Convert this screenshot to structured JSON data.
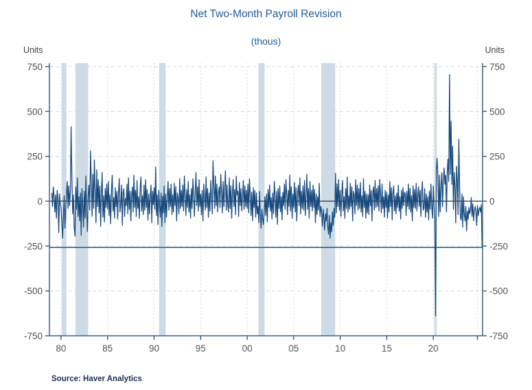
{
  "header": {
    "title": "Net Two-Month Payroll Revision",
    "subtitle": "(thous)"
  },
  "axes": {
    "left_unit_label": "Units",
    "right_unit_label": "Units"
  },
  "source": {
    "text": "Source:  Haver Analytics"
  },
  "colors": {
    "title": "#1e5c97",
    "series": "#184a7e",
    "axis": "#3d6384",
    "tick_label": "#525252",
    "gridline": "#d8d8d8",
    "recession_band": "#ccdbe5",
    "zero_line": "#000000",
    "reference_line": "#1f4e79",
    "source_text": "#1b2f4b"
  },
  "chart_data": {
    "type": "line",
    "title": "Net Two-Month Payroll Revision",
    "subtitle": "(thous)",
    "ylabel": "Units",
    "x_domain": [
      1978.75,
      2025.3
    ],
    "ylim": [
      -750,
      750
    ],
    "y_ticks": [
      750,
      500,
      250,
      0,
      -250,
      -500,
      -750
    ],
    "x_ticks": [
      {
        "year": 1980,
        "label": "80"
      },
      {
        "year": 1985,
        "label": "85"
      },
      {
        "year": 1990,
        "label": "90"
      },
      {
        "year": 1995,
        "label": "95"
      },
      {
        "year": 2000,
        "label": "00"
      },
      {
        "year": 2005,
        "label": "05"
      },
      {
        "year": 2010,
        "label": "10"
      },
      {
        "year": 2015,
        "label": "15"
      },
      {
        "year": 2020,
        "label": "20"
      },
      {
        "year": 2024.75,
        "label": ""
      }
    ],
    "grid": "dashed",
    "zero_line": 0,
    "reference_line": -258,
    "recession_bands": [
      [
        1980.08,
        1980.58
      ],
      [
        1981.54,
        1982.92
      ],
      [
        1990.54,
        1991.25
      ],
      [
        2001.21,
        2001.87
      ],
      [
        2007.96,
        2009.46
      ],
      [
        2020.12,
        2020.37
      ]
    ],
    "series": {
      "name": "Net two-month payroll revision (thous)",
      "start_year": 1979.0,
      "step_years": 0.0833333,
      "values": [
        45,
        -30,
        80,
        25,
        -60,
        35,
        -95,
        60,
        20,
        -175,
        40,
        -15,
        -35,
        -120,
        -205,
        -90,
        30,
        -150,
        -60,
        45,
        110,
        -40,
        85,
        -25,
        60,
        415,
        120,
        -70,
        35,
        -150,
        -195,
        80,
        -45,
        130,
        -85,
        25,
        -110,
        45,
        -190,
        70,
        -30,
        -145,
        55,
        -95,
        140,
        -60,
        -170,
        35,
        90,
        -50,
        280,
        115,
        -85,
        150,
        -40,
        230,
        65,
        -120,
        175,
        -30,
        120,
        -65,
        85,
        -140,
        45,
        160,
        -90,
        30,
        -115,
        70,
        -35,
        95,
        -45,
        110,
        -80,
        35,
        -125,
        60,
        145,
        -55,
        20,
        -95,
        75,
        -30,
        55,
        -100,
        40,
        125,
        -60,
        -20,
        90,
        -135,
        45,
        70,
        -85,
        15,
        -25,
        95,
        -70,
        130,
        -45,
        55,
        -110,
        35,
        80,
        -60,
        145,
        -35,
        60,
        -85,
        115,
        -40,
        25,
        -95,
        70,
        135,
        -55,
        30,
        -75,
        90,
        -50,
        120,
        -35,
        65,
        -105,
        40,
        -70,
        25,
        90,
        -120,
        55,
        -20,
        75,
        -45,
        190,
        -80,
        35,
        -130,
        60,
        -25,
        -90,
        45,
        -140,
        30,
        -65,
        85,
        -120,
        40,
        -90,
        25,
        110,
        -50,
        70,
        -30,
        95,
        -75,
        35,
        -60,
        100,
        -25,
        80,
        -110,
        45,
        15,
        -70,
        125,
        -40,
        60,
        -30,
        90,
        -55,
        140,
        25,
        -80,
        65,
        -35,
        110,
        -60,
        35,
        -95,
        70,
        -40,
        125,
        30,
        -85,
        55,
        160,
        -25,
        80,
        -55,
        120,
        -30,
        40,
        -75,
        60,
        -110,
        95,
        25,
        -50,
        135,
        -35,
        70,
        -90,
        45,
        -55,
        115,
        30,
        -70,
        225,
        85,
        -40,
        140,
        -25,
        95,
        -60,
        50,
        80,
        -35,
        150,
        45,
        -65,
        110,
        -30,
        75,
        170,
        -50,
        90,
        -20,
        -60,
        130,
        -40,
        85,
        -95,
        50,
        120,
        -30,
        65,
        -75,
        140,
        35,
        55,
        -85,
        105,
        -25,
        70,
        -55,
        30,
        115,
        -45,
        85,
        -30,
        60,
        -40,
        95,
        -65,
        125,
        35,
        -80,
        50,
        -110,
        75,
        -35,
        60,
        -90,
        45,
        -70,
        -30,
        -120,
        55,
        -85,
        -150,
        -45,
        -95,
        -130,
        -60,
        25,
        -80,
        40,
        -115,
        65,
        -35,
        90,
        -55,
        20,
        -100,
        45,
        -70,
        110,
        30,
        -90,
        55,
        -130,
        70,
        -40,
        85,
        -60,
        25,
        -105,
        50,
        -25,
        95,
        -45,
        120,
        35,
        -75,
        60,
        -30,
        145,
        -55,
        80,
        -95,
        40,
        -35,
        105,
        -60,
        75,
        -110,
        45,
        90,
        -25,
        130,
        -70,
        55,
        -40,
        85,
        -50,
        115,
        -80,
        35,
        150,
        -45,
        70,
        -95,
        110,
        -30,
        60,
        -55,
        90,
        -35,
        65,
        -120,
        40,
        -75,
        25,
        -50,
        100,
        -85,
        -30,
        -60,
        -140,
        -45,
        -95,
        -160,
        -70,
        -110,
        -40,
        -145,
        -185,
        -80,
        -205,
        -120,
        -170,
        -60,
        -135,
        -40,
        -90,
        155,
        -65,
        95,
        -30,
        120,
        -50,
        60,
        -85,
        40,
        115,
        -55,
        25,
        -95,
        70,
        -40,
        135,
        -60,
        30,
        -45,
        100,
        -30,
        80,
        -110,
        55,
        35,
        -70,
        120,
        -25,
        90,
        -50,
        70,
        -40,
        105,
        -60,
        30,
        -85,
        125,
        -35,
        55,
        -95,
        40,
        -65,
        35,
        -75,
        90,
        -25,
        60,
        -110,
        45,
        80,
        -50,
        115,
        -35,
        70,
        -30,
        85,
        -55,
        120,
        40,
        -65,
        95,
        -40,
        25,
        -90,
        60,
        -35,
        50,
        -95,
        35,
        -60,
        110,
        -30,
        75,
        -105,
        45,
        85,
        -55,
        30,
        -70,
        45,
        -35,
        90,
        -55,
        25,
        -100,
        60,
        -40,
        75,
        -25,
        50,
        40,
        -80,
        55,
        -30,
        95,
        -45,
        70,
        -60,
        30,
        -110,
        85,
        -35,
        65,
        -40,
        100,
        -55,
        35,
        80,
        -30,
        60,
        -85,
        45,
        110,
        -50,
        -35,
        70,
        -90,
        40,
        -60,
        25,
        -105,
        55,
        -45,
        95,
        -30,
        -95,
        85,
        -25,
        -105,
        -640,
        175,
        240,
        130,
        -85,
        145,
        -60,
        90,
        160,
        -30,
        120,
        185,
        95,
        145,
        -60,
        160,
        235,
        110,
        705,
        150,
        445,
        95,
        305,
        -45,
        160,
        85,
        -120,
        195,
        110,
        -75,
        345,
        70,
        -90,
        -105,
        40,
        -145,
        25,
        -70,
        -110,
        -30,
        -165,
        -55,
        -100,
        -35,
        -70,
        -50,
        20,
        -85,
        -15,
        -110,
        -55,
        -30,
        -60,
        -135,
        -25,
        -80,
        -45,
        -35,
        -60,
        -20,
        -258
      ]
    }
  }
}
